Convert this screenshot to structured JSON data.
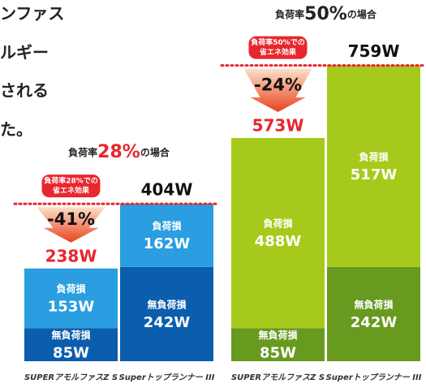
{
  "intro_text": [
    "ンファス",
    "ルギー",
    "される",
    "た。"
  ],
  "chart_data": [
    {
      "type": "bar",
      "stacked": true,
      "title": {
        "prefix": "負荷率",
        "rate": "28%",
        "suffix": "の場合"
      },
      "badge": [
        "負荷率28%での",
        "省エネ効果"
      ],
      "reduction_label": "-41%",
      "categories": [
        "SUPERアモルファスZ S",
        "Superトップランナー III"
      ],
      "series": [
        {
          "name": "無負荷損",
          "color": "#0b5ead",
          "values": [
            85,
            242
          ],
          "value_labels": [
            "85W",
            "242W"
          ]
        },
        {
          "name": "負荷損",
          "color": "#2a9ee0",
          "values": [
            153,
            162
          ],
          "value_labels": [
            "153W",
            "162W"
          ]
        }
      ],
      "totals": [
        238,
        404
      ],
      "total_labels": [
        "238W",
        "404W"
      ]
    },
    {
      "type": "bar",
      "stacked": true,
      "title": {
        "prefix": "負荷率",
        "rate": "50%",
        "suffix": "の場合"
      },
      "badge": [
        "負荷率50%での",
        "省エネ効果"
      ],
      "reduction_label": "-24%",
      "categories": [
        "SUPERアモルファスZ S",
        "Superトップランナー III"
      ],
      "series": [
        {
          "name": "無負荷損",
          "color": "#679a1f",
          "values": [
            85,
            242
          ],
          "value_labels": [
            "85W",
            "242W"
          ]
        },
        {
          "name": "負荷損",
          "color": "#a6ca1b",
          "values": [
            488,
            517
          ],
          "value_labels": [
            "488W",
            "517W"
          ]
        }
      ],
      "totals": [
        573,
        759
      ],
      "total_labels": [
        "573W",
        "759W"
      ]
    }
  ]
}
